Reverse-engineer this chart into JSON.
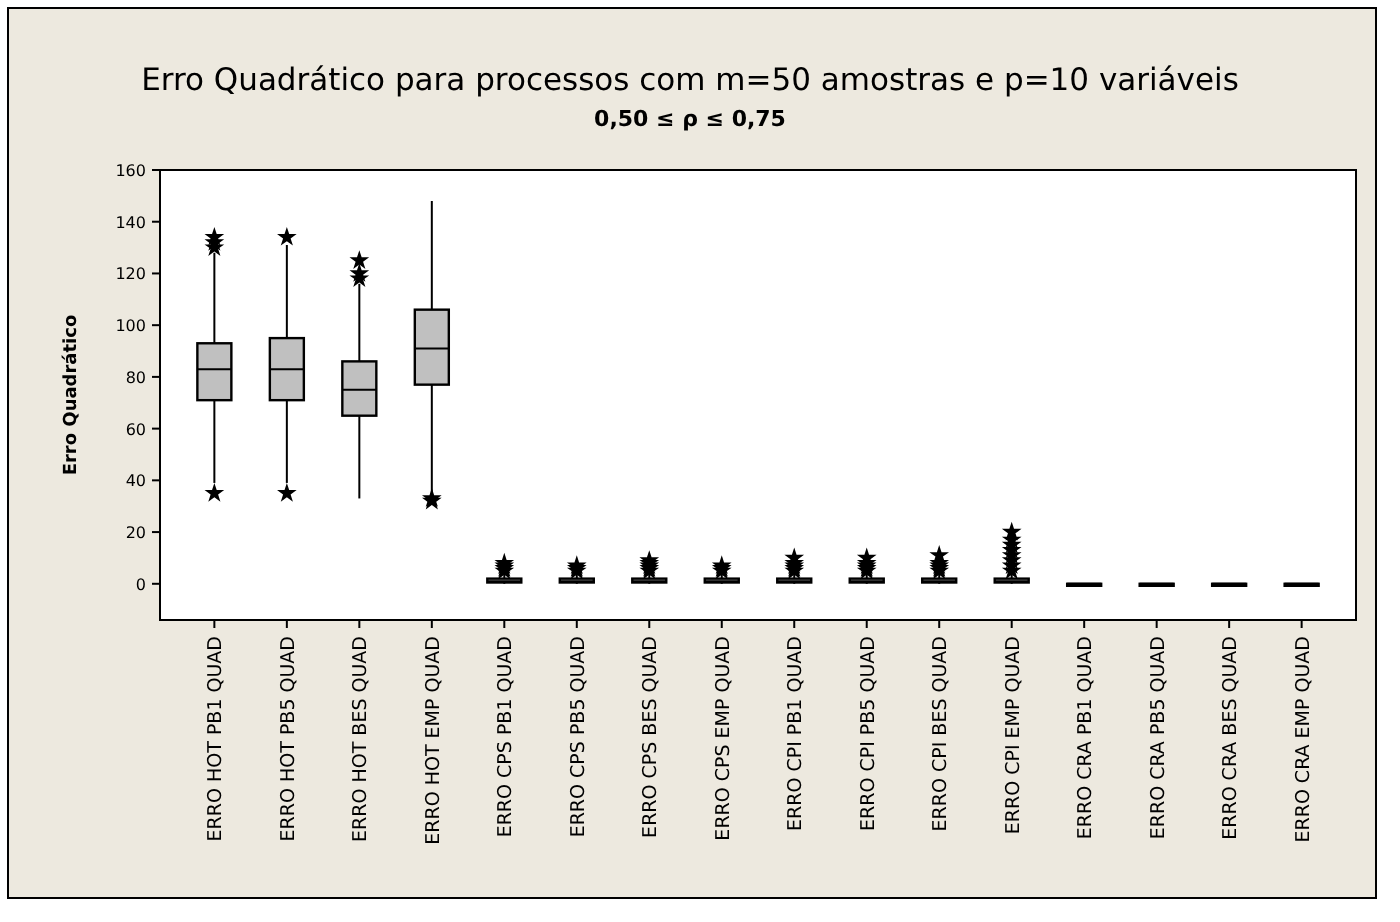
{
  "chart_data": {
    "type": "box",
    "title": "Erro Quadrático para processos com m=50 amostras e p=10 variáveis",
    "subtitle": "0,50 ≤ ρ ≤ 0,75",
    "ylabel": "Erro Quadrático",
    "categories": [
      "ERRO HOT PB1 QUAD",
      "ERRO HOT PB5 QUAD",
      "ERRO HOT BES QUAD",
      "ERRO HOT EMP QUAD",
      "ERRO CPS PB1 QUAD",
      "ERRO CPS PB5 QUAD",
      "ERRO CPS BES QUAD",
      "ERRO CPS EMP QUAD",
      "ERRO CPI PB1 QUAD",
      "ERRO CPI PB5 QUAD",
      "ERRO CPI BES QUAD",
      "ERRO CPI EMP QUAD",
      "ERRO CRA PB1 QUAD",
      "ERRO CRA PB5 QUAD",
      "ERRO CRA BES QUAD",
      "ERRO CRA EMP QUAD"
    ],
    "boxes": [
      {
        "low": 39,
        "q1": 71,
        "median": 83,
        "q3": 93,
        "high": 128,
        "outliers": [
          35,
          130,
          132,
          134
        ]
      },
      {
        "low": 39,
        "q1": 71,
        "median": 83,
        "q3": 95,
        "high": 131,
        "outliers": [
          35,
          134
        ]
      },
      {
        "low": 33,
        "q1": 65,
        "median": 75,
        "q3": 86,
        "high": 116,
        "outliers": [
          118,
          120,
          125
        ]
      },
      {
        "low": 34,
        "q1": 77,
        "median": 91,
        "q3": 106,
        "high": 148,
        "outliers": [
          32,
          33
        ]
      },
      {
        "low": 0,
        "q1": 0.5,
        "median": 1,
        "q3": 2,
        "high": 4,
        "outliers": [
          5,
          6,
          7,
          8
        ]
      },
      {
        "low": 0,
        "q1": 0.5,
        "median": 1,
        "q3": 2,
        "high": 4,
        "outliers": [
          5,
          6,
          7
        ]
      },
      {
        "low": 0,
        "q1": 0.5,
        "median": 1,
        "q3": 2,
        "high": 4,
        "outliers": [
          5,
          6,
          7,
          8,
          9
        ]
      },
      {
        "low": 0,
        "q1": 0.5,
        "median": 1,
        "q3": 2,
        "high": 4,
        "outliers": [
          5,
          6,
          7
        ]
      },
      {
        "low": 0,
        "q1": 0.5,
        "median": 1,
        "q3": 2,
        "high": 4,
        "outliers": [
          5,
          6,
          7,
          8,
          10
        ]
      },
      {
        "low": 0,
        "q1": 0.5,
        "median": 1,
        "q3": 2,
        "high": 4,
        "outliers": [
          5,
          6,
          7,
          8,
          10
        ]
      },
      {
        "low": 0,
        "q1": 0.5,
        "median": 1,
        "q3": 2,
        "high": 4,
        "outliers": [
          5,
          6,
          7,
          8,
          11
        ]
      },
      {
        "low": 0,
        "q1": 0.5,
        "median": 1,
        "q3": 2,
        "high": 4,
        "outliers": [
          5,
          7,
          9,
          11,
          13,
          15,
          17,
          20
        ]
      },
      {
        "low": 0,
        "q1": 0,
        "median": 0,
        "q3": 0,
        "high": 0
      },
      {
        "low": 0,
        "q1": 0,
        "median": 0,
        "q3": 0,
        "high": 0
      },
      {
        "low": 0,
        "q1": 0,
        "median": 0,
        "q3": 0,
        "high": 0
      },
      {
        "low": 0,
        "q1": 0,
        "median": 0,
        "q3": 0,
        "high": 0
      }
    ],
    "color": "#c0c0c0",
    "ylim": [
      -14,
      160
    ],
    "yticks": [
      0,
      20,
      40,
      60,
      80,
      100,
      120,
      140,
      160
    ],
    "marker": "star"
  }
}
